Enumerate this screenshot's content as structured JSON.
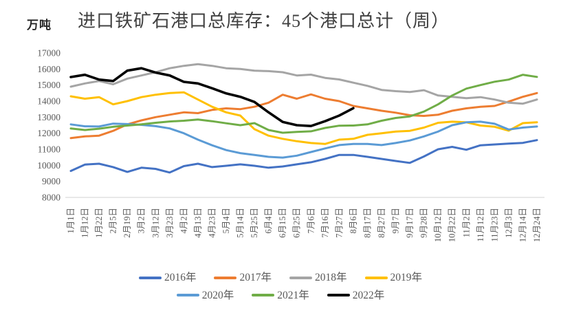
{
  "chart_data": {
    "type": "line",
    "title": "进口铁矿石港口总库存：45个港口总计（周）",
    "unit": "万吨",
    "xlabel": "",
    "ylabel": "万吨",
    "ylim": [
      8000,
      17000
    ],
    "yticks": [
      17000,
      16000,
      15000,
      14000,
      13000,
      12000,
      11000,
      10000,
      9000,
      8000
    ],
    "grid": "baseline-only",
    "legend_position": "bottom",
    "legend_rows": [
      [
        "2016年",
        "2017年",
        "2018年",
        "2019年"
      ],
      [
        "2020年",
        "2021年",
        "2022年"
      ]
    ],
    "categories": [
      "1月1日",
      "1月12日",
      "1月22日",
      "2月5日",
      "2月19日",
      "3月2日",
      "3月12日",
      "3月23日",
      "4月2日",
      "4月13日",
      "4月23日",
      "5月4日",
      "5月14日",
      "5月25日",
      "6月4日",
      "6月15日",
      "6月25日",
      "7月6日",
      "7月16日",
      "7月27日",
      "8月6日",
      "8月17日",
      "8月27日",
      "9月7日",
      "9月17日",
      "9月28日",
      "10月12日",
      "10月22日",
      "11月2日",
      "11月12日",
      "11月23日",
      "12月3日",
      "12月14日",
      "12月24日"
    ],
    "series": [
      {
        "name": "2016年",
        "color": "#4472C4",
        "values": [
          9650,
          10050,
          10100,
          9890,
          9590,
          9850,
          9780,
          9550,
          9950,
          10100,
          9890,
          9970,
          10060,
          9970,
          9850,
          9930,
          10060,
          10190,
          10400,
          10650,
          10650,
          10530,
          10400,
          10270,
          10150,
          10550,
          11000,
          11150,
          10970,
          11250,
          11300,
          11350,
          11400,
          11570
        ]
      },
      {
        "name": "2017年",
        "color": "#ED7D31",
        "values": [
          11700,
          11800,
          11850,
          12150,
          12550,
          12800,
          13000,
          13150,
          13300,
          13250,
          13450,
          13550,
          13500,
          13650,
          13900,
          14400,
          14150,
          14420,
          14150,
          14000,
          13700,
          13550,
          13400,
          13280,
          13120,
          13080,
          13150,
          13400,
          13550,
          13650,
          13700,
          13970,
          14270,
          14500
        ]
      },
      {
        "name": "2018年",
        "color": "#A5A5A5",
        "values": [
          14900,
          15100,
          15250,
          15050,
          15400,
          15600,
          15800,
          16050,
          16200,
          16300,
          16200,
          16050,
          16000,
          15900,
          15870,
          15800,
          15600,
          15650,
          15450,
          15350,
          15150,
          14950,
          14700,
          14620,
          14570,
          14680,
          14350,
          14270,
          14180,
          14250,
          14100,
          13900,
          13840,
          14100
        ]
      },
      {
        "name": "2019年",
        "color": "#FFC000",
        "values": [
          14300,
          14150,
          14250,
          13800,
          14000,
          14250,
          14400,
          14500,
          14550,
          14100,
          13650,
          13300,
          13100,
          12250,
          11850,
          11650,
          11500,
          11390,
          11330,
          11600,
          11650,
          11900,
          12000,
          12100,
          12150,
          12350,
          12650,
          12720,
          12680,
          12480,
          12400,
          12160,
          12630,
          12680
        ]
      },
      {
        "name": "2020年",
        "color": "#5B9BD5",
        "values": [
          12550,
          12430,
          12420,
          12600,
          12570,
          12520,
          12440,
          12300,
          12000,
          11600,
          11250,
          10950,
          10760,
          10650,
          10530,
          10480,
          10600,
          10830,
          11050,
          11260,
          11330,
          11330,
          11260,
          11390,
          11550,
          11800,
          12100,
          12500,
          12680,
          12720,
          12590,
          12230,
          12350,
          12420
        ]
      },
      {
        "name": "2021年",
        "color": "#70AD47",
        "values": [
          12300,
          12200,
          12280,
          12400,
          12480,
          12550,
          12650,
          12730,
          12780,
          12850,
          12750,
          12620,
          12500,
          12630,
          12200,
          12030,
          12080,
          12120,
          12330,
          12470,
          12480,
          12550,
          12780,
          12950,
          13050,
          13350,
          13800,
          14350,
          14780,
          15000,
          15210,
          15340,
          15640,
          15510
        ]
      },
      {
        "name": "2022年",
        "color": "#000000",
        "values": [
          15500,
          15640,
          15340,
          15250,
          15900,
          16050,
          15780,
          15600,
          15200,
          15100,
          14800,
          14480,
          14270,
          13950,
          13300,
          12700,
          12500,
          12450,
          12750,
          13100,
          13560
        ]
      }
    ]
  }
}
